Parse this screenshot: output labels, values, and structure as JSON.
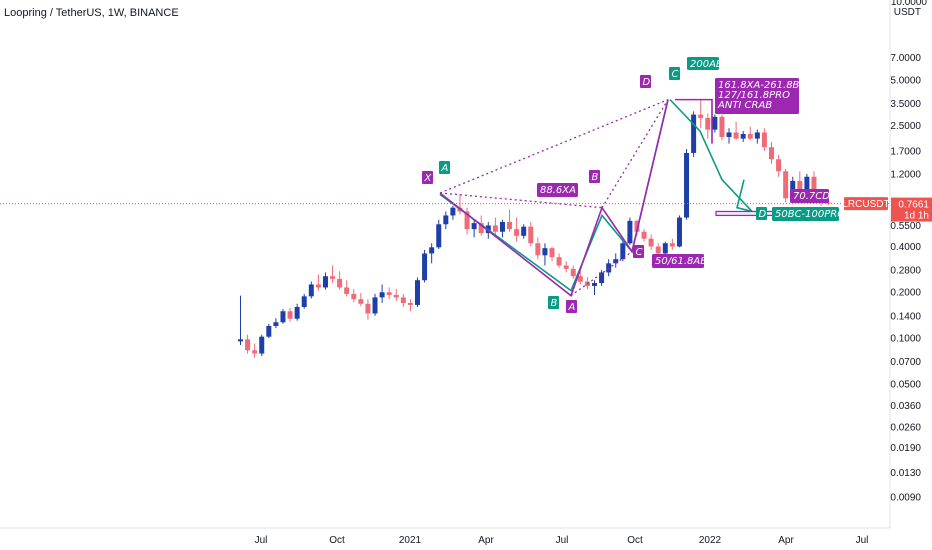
{
  "header": {
    "symbol_title": "Loopring / TetherUS, 1W, BINANCE"
  },
  "price_axis": {
    "currency_top": "10.0000",
    "currency_unit": "USDT",
    "ticks": [
      "7.0000",
      "5.0000",
      "3.5000",
      "2.5000",
      "1.7000",
      "1.2000",
      "0.5500",
      "0.4000",
      "0.2800",
      "0.2000",
      "0.1400",
      "0.1000",
      "0.0700",
      "0.0500",
      "0.0360",
      "0.0260",
      "0.0190",
      "0.0130",
      "0.0090"
    ],
    "last_price_label": "0.7661",
    "symbol_tag": "LRCUSDT",
    "countdown": "1d 1h"
  },
  "time_axis": {
    "ticks": [
      "Jul",
      "Oct",
      "2021",
      "Apr",
      "Jul",
      "Oct",
      "2022",
      "Apr",
      "Jul"
    ]
  },
  "colors": {
    "up": "#1d3fa6",
    "down": "#f06b78",
    "green": "#0a9b85",
    "purple": "#9c27b0",
    "last_price": "#ef5350"
  },
  "annotations": {
    "pattern_label_1": "200AB",
    "pattern_label_2": "161.8XA-261.8BC",
    "pattern_label_3": "127/161.8PRO",
    "pattern_label_4": "ANTI CRAB",
    "ratio_xa": "88.6XA",
    "ratio_ab": "50/61.8AB",
    "ratio_cd": "70.7CD",
    "ratio_bc": "50BC-100PRO",
    "points": {
      "x": "X",
      "a": "A",
      "b": "B",
      "c": "C",
      "d": "D"
    }
  },
  "chart_data": {
    "type": "candlestick",
    "title": "Loopring / TetherUS, 1W, BINANCE",
    "y_scale": "log",
    "ylim": [
      0.008,
      10
    ],
    "last_price": 0.7661,
    "candles": [
      {
        "o": 0.095,
        "h": 0.19,
        "l": 0.09,
        "c": 0.098
      },
      {
        "o": 0.098,
        "h": 0.105,
        "l": 0.079,
        "c": 0.083
      },
      {
        "o": 0.083,
        "h": 0.092,
        "l": 0.074,
        "c": 0.079
      },
      {
        "o": 0.079,
        "h": 0.105,
        "l": 0.076,
        "c": 0.102
      },
      {
        "o": 0.102,
        "h": 0.124,
        "l": 0.1,
        "c": 0.12
      },
      {
        "o": 0.12,
        "h": 0.135,
        "l": 0.116,
        "c": 0.127
      },
      {
        "o": 0.127,
        "h": 0.155,
        "l": 0.124,
        "c": 0.15
      },
      {
        "o": 0.15,
        "h": 0.158,
        "l": 0.128,
        "c": 0.134
      },
      {
        "o": 0.134,
        "h": 0.168,
        "l": 0.13,
        "c": 0.16
      },
      {
        "o": 0.16,
        "h": 0.195,
        "l": 0.156,
        "c": 0.188
      },
      {
        "o": 0.188,
        "h": 0.235,
        "l": 0.182,
        "c": 0.225
      },
      {
        "o": 0.225,
        "h": 0.262,
        "l": 0.205,
        "c": 0.215
      },
      {
        "o": 0.215,
        "h": 0.27,
        "l": 0.208,
        "c": 0.255
      },
      {
        "o": 0.255,
        "h": 0.3,
        "l": 0.23,
        "c": 0.245
      },
      {
        "o": 0.245,
        "h": 0.275,
        "l": 0.208,
        "c": 0.215
      },
      {
        "o": 0.215,
        "h": 0.24,
        "l": 0.188,
        "c": 0.195
      },
      {
        "o": 0.195,
        "h": 0.21,
        "l": 0.172,
        "c": 0.18
      },
      {
        "o": 0.18,
        "h": 0.198,
        "l": 0.162,
        "c": 0.168
      },
      {
        "o": 0.168,
        "h": 0.18,
        "l": 0.132,
        "c": 0.145
      },
      {
        "o": 0.145,
        "h": 0.195,
        "l": 0.14,
        "c": 0.185
      },
      {
        "o": 0.185,
        "h": 0.225,
        "l": 0.17,
        "c": 0.2
      },
      {
        "o": 0.2,
        "h": 0.215,
        "l": 0.18,
        "c": 0.192
      },
      {
        "o": 0.192,
        "h": 0.21,
        "l": 0.175,
        "c": 0.185
      },
      {
        "o": 0.185,
        "h": 0.195,
        "l": 0.16,
        "c": 0.17
      },
      {
        "o": 0.17,
        "h": 0.18,
        "l": 0.15,
        "c": 0.165
      },
      {
        "o": 0.165,
        "h": 0.25,
        "l": 0.16,
        "c": 0.24
      },
      {
        "o": 0.24,
        "h": 0.38,
        "l": 0.232,
        "c": 0.36
      },
      {
        "o": 0.36,
        "h": 0.42,
        "l": 0.31,
        "c": 0.395
      },
      {
        "o": 0.395,
        "h": 0.6,
        "l": 0.385,
        "c": 0.56
      },
      {
        "o": 0.56,
        "h": 0.68,
        "l": 0.52,
        "c": 0.64
      },
      {
        "o": 0.64,
        "h": 0.74,
        "l": 0.6,
        "c": 0.72
      },
      {
        "o": 0.72,
        "h": 0.88,
        "l": 0.65,
        "c": 0.68
      },
      {
        "o": 0.68,
        "h": 0.72,
        "l": 0.48,
        "c": 0.52
      },
      {
        "o": 0.52,
        "h": 0.6,
        "l": 0.46,
        "c": 0.57
      },
      {
        "o": 0.57,
        "h": 0.64,
        "l": 0.47,
        "c": 0.49
      },
      {
        "o": 0.49,
        "h": 0.58,
        "l": 0.45,
        "c": 0.55
      },
      {
        "o": 0.55,
        "h": 0.62,
        "l": 0.47,
        "c": 0.5
      },
      {
        "o": 0.5,
        "h": 0.6,
        "l": 0.46,
        "c": 0.58
      },
      {
        "o": 0.58,
        "h": 0.7,
        "l": 0.5,
        "c": 0.52
      },
      {
        "o": 0.52,
        "h": 0.62,
        "l": 0.43,
        "c": 0.47
      },
      {
        "o": 0.47,
        "h": 0.56,
        "l": 0.45,
        "c": 0.54
      },
      {
        "o": 0.54,
        "h": 0.58,
        "l": 0.4,
        "c": 0.42
      },
      {
        "o": 0.42,
        "h": 0.46,
        "l": 0.33,
        "c": 0.35
      },
      {
        "o": 0.35,
        "h": 0.42,
        "l": 0.3,
        "c": 0.39
      },
      {
        "o": 0.39,
        "h": 0.4,
        "l": 0.32,
        "c": 0.34
      },
      {
        "o": 0.34,
        "h": 0.36,
        "l": 0.29,
        "c": 0.3
      },
      {
        "o": 0.3,
        "h": 0.32,
        "l": 0.27,
        "c": 0.285
      },
      {
        "o": 0.285,
        "h": 0.3,
        "l": 0.245,
        "c": 0.255
      },
      {
        "o": 0.255,
        "h": 0.275,
        "l": 0.225,
        "c": 0.235
      },
      {
        "o": 0.235,
        "h": 0.252,
        "l": 0.21,
        "c": 0.22
      },
      {
        "o": 0.22,
        "h": 0.24,
        "l": 0.192,
        "c": 0.23
      },
      {
        "o": 0.23,
        "h": 0.28,
        "l": 0.22,
        "c": 0.27
      },
      {
        "o": 0.27,
        "h": 0.33,
        "l": 0.255,
        "c": 0.31
      },
      {
        "o": 0.31,
        "h": 0.36,
        "l": 0.29,
        "c": 0.33
      },
      {
        "o": 0.33,
        "h": 0.44,
        "l": 0.32,
        "c": 0.42
      },
      {
        "o": 0.42,
        "h": 0.62,
        "l": 0.41,
        "c": 0.59
      },
      {
        "o": 0.59,
        "h": 0.6,
        "l": 0.47,
        "c": 0.5
      },
      {
        "o": 0.5,
        "h": 0.52,
        "l": 0.43,
        "c": 0.45
      },
      {
        "o": 0.45,
        "h": 0.48,
        "l": 0.38,
        "c": 0.4
      },
      {
        "o": 0.4,
        "h": 0.42,
        "l": 0.34,
        "c": 0.36
      },
      {
        "o": 0.36,
        "h": 0.43,
        "l": 0.35,
        "c": 0.42
      },
      {
        "o": 0.42,
        "h": 0.45,
        "l": 0.38,
        "c": 0.4
      },
      {
        "o": 0.4,
        "h": 0.64,
        "l": 0.395,
        "c": 0.62
      },
      {
        "o": 0.62,
        "h": 1.75,
        "l": 0.6,
        "c": 1.65
      },
      {
        "o": 1.65,
        "h": 3.1,
        "l": 1.55,
        "c": 2.95
      },
      {
        "o": 2.95,
        "h": 3.75,
        "l": 2.4,
        "c": 2.8
      },
      {
        "o": 2.8,
        "h": 3.0,
        "l": 2.05,
        "c": 2.35
      },
      {
        "o": 2.35,
        "h": 2.95,
        "l": 2.25,
        "c": 2.85
      },
      {
        "o": 2.85,
        "h": 2.95,
        "l": 2.0,
        "c": 2.1
      },
      {
        "o": 2.1,
        "h": 2.4,
        "l": 1.9,
        "c": 2.25
      },
      {
        "o": 2.25,
        "h": 2.65,
        "l": 2.0,
        "c": 2.05
      },
      {
        "o": 2.05,
        "h": 2.3,
        "l": 1.95,
        "c": 2.2
      },
      {
        "o": 2.2,
        "h": 2.45,
        "l": 2.0,
        "c": 2.05
      },
      {
        "o": 2.05,
        "h": 2.35,
        "l": 1.9,
        "c": 2.25
      },
      {
        "o": 2.25,
        "h": 2.4,
        "l": 1.7,
        "c": 1.8
      },
      {
        "o": 1.8,
        "h": 1.95,
        "l": 1.4,
        "c": 1.5
      },
      {
        "o": 1.5,
        "h": 1.6,
        "l": 1.15,
        "c": 1.25
      },
      {
        "o": 1.25,
        "h": 1.3,
        "l": 0.78,
        "c": 0.83
      },
      {
        "o": 0.83,
        "h": 1.15,
        "l": 0.8,
        "c": 1.08
      },
      {
        "o": 1.08,
        "h": 1.25,
        "l": 0.9,
        "c": 0.95
      },
      {
        "o": 0.95,
        "h": 1.2,
        "l": 0.85,
        "c": 1.15
      },
      {
        "o": 1.15,
        "h": 1.25,
        "l": 0.85,
        "c": 0.88
      },
      {
        "o": 0.88,
        "h": 0.92,
        "l": 0.74,
        "c": 0.78
      },
      {
        "o": 0.78,
        "h": 0.82,
        "l": 0.745,
        "c": 0.766
      }
    ],
    "harmonic_pattern_purple": {
      "X": 0.9,
      "A": 0.19,
      "B": 0.72,
      "C": 0.37,
      "D": 3.7
    },
    "harmonic_pattern_green": {
      "X": 0.88,
      "A": 0.205,
      "B": 0.64,
      "C": 0.37,
      "D": 3.7
    }
  }
}
